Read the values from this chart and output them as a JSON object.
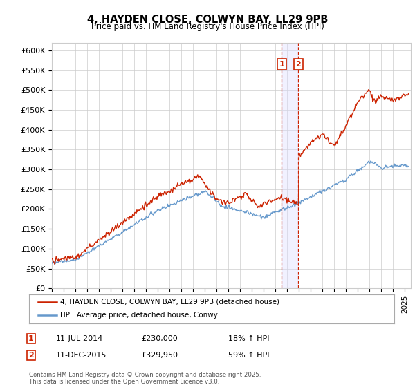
{
  "title": "4, HAYDEN CLOSE, COLWYN BAY, LL29 9PB",
  "subtitle": "Price paid vs. HM Land Registry's House Price Index (HPI)",
  "ytick_labels": [
    "£0",
    "£50K",
    "£100K",
    "£150K",
    "£200K",
    "£250K",
    "£300K",
    "£350K",
    "£400K",
    "£450K",
    "£500K",
    "£550K",
    "£600K"
  ],
  "ytick_values": [
    0,
    50000,
    100000,
    150000,
    200000,
    250000,
    300000,
    350000,
    400000,
    450000,
    500000,
    550000,
    600000
  ],
  "ylim": [
    0,
    620000
  ],
  "xlim_start": 1995,
  "xlim_end": 2025.5,
  "legend_line1": "4, HAYDEN CLOSE, COLWYN BAY, LL29 9PB (detached house)",
  "legend_line2": "HPI: Average price, detached house, Conwy",
  "transaction1_date": "11-JUL-2014",
  "transaction1_price": "£230,000",
  "transaction1_hpi": "18% ↑ HPI",
  "transaction2_date": "11-DEC-2015",
  "transaction2_price": "£329,950",
  "transaction2_hpi": "59% ↑ HPI",
  "footnote": "Contains HM Land Registry data © Crown copyright and database right 2025.\nThis data is licensed under the Open Government Licence v3.0.",
  "line_color_red": "#cc2200",
  "line_color_blue": "#6699cc",
  "marker1_year": 2014.53,
  "marker2_year": 2015.95,
  "vspan_color": "#ddddff",
  "vspan_alpha": 0.4,
  "grid_color": "#cccccc",
  "bg_color": "#ffffff"
}
